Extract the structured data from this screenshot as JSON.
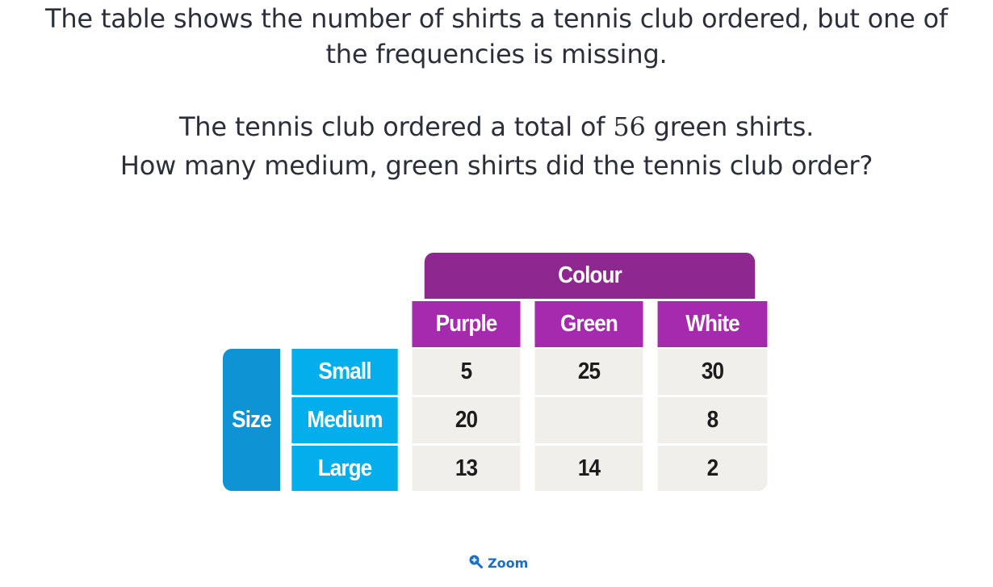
{
  "question": {
    "line1": "The table shows the number of shirts a tennis club ordered, but one of",
    "line2": "the frequencies is missing.",
    "line3_pre": "The tennis club ordered a total of ",
    "line3_num": "56",
    "line3_post": " green shirts.",
    "line4": "How many medium, green shirts did the tennis club order?"
  },
  "table": {
    "column_group": "Colour",
    "row_group": "Size",
    "columns": [
      "Purple",
      "Green",
      "White"
    ],
    "rows": [
      {
        "label": "Small",
        "values": [
          "5",
          "25",
          "30"
        ]
      },
      {
        "label": "Medium",
        "values": [
          "20",
          "",
          "8"
        ]
      },
      {
        "label": "Large",
        "values": [
          "13",
          "14",
          "2"
        ]
      }
    ]
  },
  "zoom": {
    "label": "Zoom",
    "icon": "zoom-in-icon"
  },
  "colors": {
    "colour_header": "#8e278f",
    "column_header": "#a52aae",
    "size_header": "#0e93d4",
    "row_header": "#04adec",
    "data_cell": "#f1efeb",
    "zoom_link": "#1a6fc4"
  }
}
